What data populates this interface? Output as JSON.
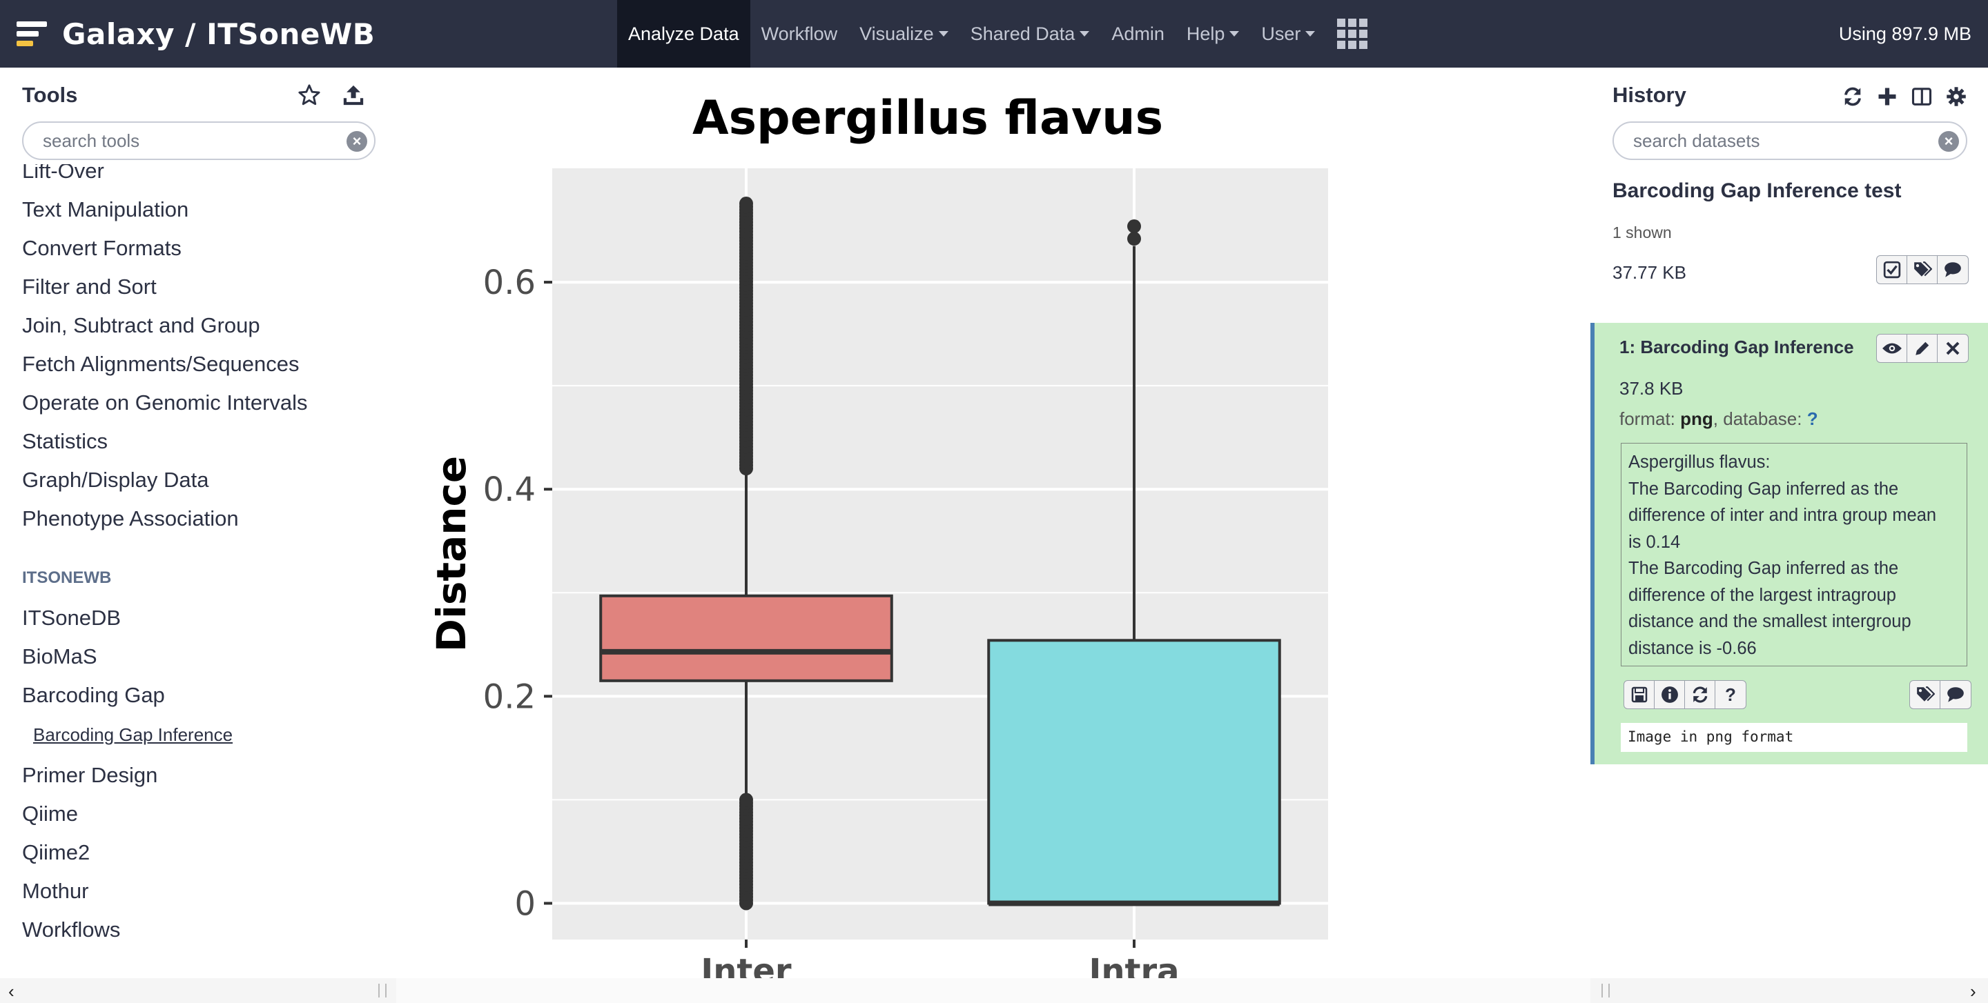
{
  "masthead": {
    "brand": "Galaxy / ITSoneWB",
    "nav": [
      {
        "label": "Analyze Data",
        "active": true,
        "dropdown": false
      },
      {
        "label": "Workflow",
        "active": false,
        "dropdown": false
      },
      {
        "label": "Visualize",
        "active": false,
        "dropdown": true
      },
      {
        "label": "Shared Data",
        "active": false,
        "dropdown": true
      },
      {
        "label": "Admin",
        "active": false,
        "dropdown": false
      },
      {
        "label": "Help",
        "active": false,
        "dropdown": true
      },
      {
        "label": "User",
        "active": false,
        "dropdown": true
      }
    ],
    "quota": "Using 897.9 MB"
  },
  "tools": {
    "title": "Tools",
    "search_placeholder": "search tools",
    "items": [
      "Lift-Over",
      "Text Manipulation",
      "Convert Formats",
      "Filter and Sort",
      "Join, Subtract and Group",
      "Fetch Alignments/Sequences",
      "Operate on Genomic Intervals",
      "Statistics",
      "Graph/Display Data",
      "Phenotype Association"
    ],
    "section": "ITSONEWB",
    "section_items": [
      "ITSoneDB",
      "BioMaS",
      "Barcoding Gap"
    ],
    "sub_tool": "Barcoding Gap Inference",
    "after_items": [
      "Primer Design",
      "Qiime",
      "Qiime2",
      "Mothur",
      "Workflows"
    ]
  },
  "chart_data": {
    "type": "box",
    "title": "Aspergillus flavus",
    "xlabel": "",
    "ylabel": "Distance",
    "categories": [
      "Inter",
      "Intra"
    ],
    "yticks": [
      0,
      0.2,
      0.4,
      0.6
    ],
    "ytick_labels": [
      "0",
      "0.2",
      "0.4",
      "0.6"
    ],
    "ylim": [
      -0.035,
      0.71
    ],
    "colors": {
      "Inter": "#e0837e",
      "Intra": "#84dbdf"
    },
    "panel_bg": "#ebebeb",
    "series": [
      {
        "category": "Inter",
        "q1": 0.215,
        "median": 0.243,
        "q3": 0.297,
        "whisker_low": 0.1,
        "whisker_high": 0.42,
        "outliers_high_range": [
          0.42,
          0.676
        ],
        "outliers_low_range": [
          0.0,
          0.1
        ]
      },
      {
        "category": "Intra",
        "q1": 0.0,
        "median": 0.0,
        "q3": 0.254,
        "whisker_low": 0.0,
        "whisker_high": 0.635,
        "outliers": [
          0.642,
          0.654
        ]
      }
    ]
  },
  "history": {
    "title": "History",
    "search_placeholder": "search datasets",
    "name": "Barcoding Gap Inference test",
    "shown": "1 shown",
    "size": "37.77 KB",
    "dataset": {
      "title": "1: Barcoding Gap Inference",
      "size": "37.8 KB",
      "format_label": "format: ",
      "format": "png",
      "database_label": ", database: ",
      "database": "?",
      "peek": [
        "Aspergillus flavus:",
        "The Barcoding Gap inferred as the",
        "difference of inter and intra group mean",
        "is 0.14",
        "The Barcoding Gap inferred as the",
        "difference of the largest intragroup",
        "distance and the smallest intergroup",
        "distance is -0.66"
      ],
      "info": "Image in png format"
    }
  }
}
